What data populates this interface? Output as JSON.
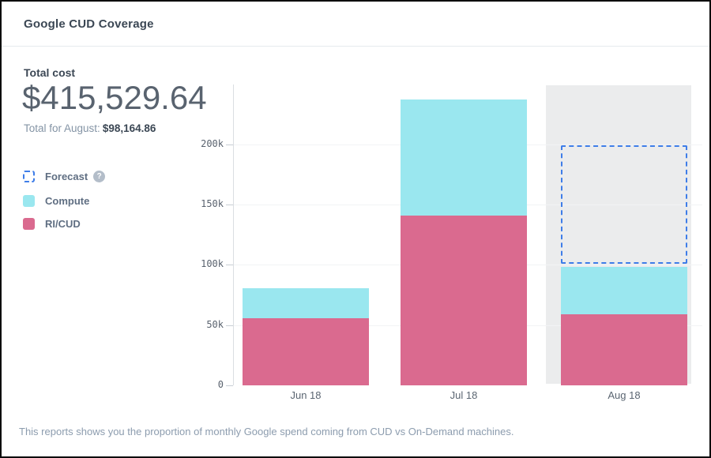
{
  "header": {
    "title": "Google CUD Coverage"
  },
  "summary": {
    "label": "Total cost",
    "total": "$415,529.64",
    "subtotal_label": "Total for August:",
    "subtotal_value": "$98,164.86"
  },
  "legend": {
    "help_icon": "?",
    "items": [
      {
        "label": "Forecast",
        "type": "forecast"
      },
      {
        "label": "Compute",
        "type": "series"
      },
      {
        "label": "RI/CUD",
        "type": "series"
      }
    ]
  },
  "footer": {
    "description": "This reports shows you the proportion of monthly Google spend coming from CUD vs On-Demand machines."
  },
  "chart_data": {
    "type": "bar",
    "stacked": true,
    "title": "Google CUD Coverage",
    "xlabel": "",
    "ylabel": "",
    "categories": [
      "Jun 18",
      "Jul 18",
      "Aug 18"
    ],
    "series": [
      {
        "name": "RI/CUD",
        "color": "#da6a8f",
        "values": [
          56000,
          141000,
          58800
        ]
      },
      {
        "name": "Compute",
        "color": "#9ae7ef",
        "values": [
          24500,
          96500,
          39364.86
        ]
      }
    ],
    "totals": [
      80500,
      237500,
      98164.86
    ],
    "forecast": {
      "month": "Aug 18",
      "total": 199000,
      "box_bottom": 100800,
      "band_color": "#ebeced",
      "border_color": "#3e7de8"
    },
    "ytick_values": [
      0,
      50000,
      100000,
      150000,
      200000
    ],
    "ytick_labels": [
      "0",
      "50k",
      "100k",
      "150k",
      "200k"
    ],
    "ylim": [
      0,
      253000
    ],
    "grid": true,
    "legend_position": "left"
  }
}
